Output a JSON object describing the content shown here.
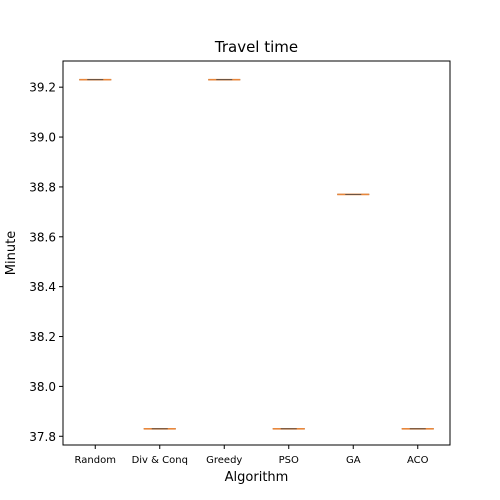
{
  "chart_data": {
    "type": "box",
    "title": "Travel time",
    "xlabel": "Algorithm",
    "ylabel": "Minute",
    "categories": [
      "Random",
      "Div & Conq",
      "Greedy",
      "PSO",
      "GA",
      "ACO"
    ],
    "values": [
      39.23,
      37.83,
      39.23,
      37.83,
      38.77,
      37.83
    ],
    "ylim": [
      37.765,
      39.305
    ],
    "yticks": [
      "37.8",
      "38.0",
      "38.2",
      "38.4",
      "38.6",
      "38.8",
      "39.0",
      "39.2"
    ],
    "grid": false,
    "median_color": "#e8873c",
    "box_color": "#444444"
  }
}
